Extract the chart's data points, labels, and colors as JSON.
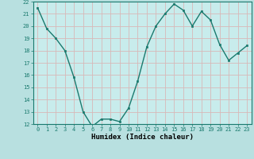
{
  "x": [
    0,
    1,
    2,
    3,
    4,
    5,
    6,
    7,
    8,
    9,
    10,
    11,
    12,
    13,
    14,
    15,
    16,
    17,
    18,
    19,
    20,
    21,
    22,
    23
  ],
  "y": [
    21.5,
    19.8,
    19.0,
    18.0,
    15.8,
    13.0,
    11.8,
    12.4,
    12.4,
    12.2,
    13.3,
    15.5,
    18.3,
    20.0,
    21.0,
    21.8,
    21.3,
    20.0,
    21.2,
    20.5,
    18.5,
    17.2,
    17.8,
    18.4
  ],
  "xlabel": "Humidex (Indice chaleur)",
  "ylim": [
    12,
    22
  ],
  "yticks": [
    12,
    13,
    14,
    15,
    16,
    17,
    18,
    19,
    20,
    21,
    22
  ],
  "xticks": [
    0,
    1,
    2,
    3,
    4,
    5,
    6,
    7,
    8,
    9,
    10,
    11,
    12,
    13,
    14,
    15,
    16,
    17,
    18,
    19,
    20,
    21,
    22,
    23
  ],
  "line_color": "#1a7a6e",
  "marker_color": "#1a7a6e",
  "bg_color": "#b8e0e0",
  "grid_color": "#d8b8b8",
  "axes_bg": "#c8ecec"
}
